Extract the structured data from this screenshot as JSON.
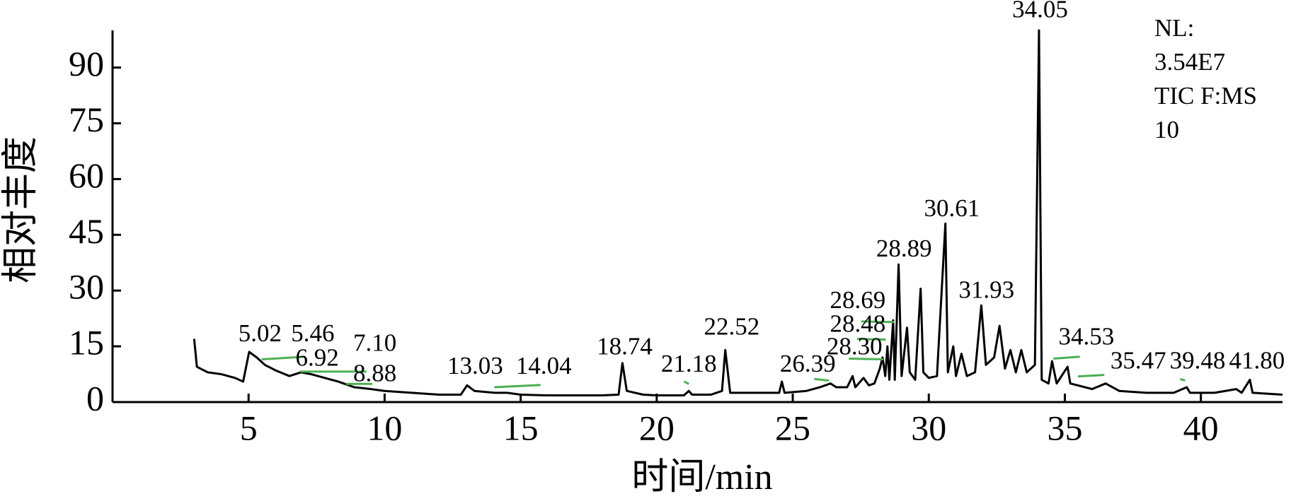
{
  "chart_data": {
    "type": "line",
    "xlabel": "时间/min",
    "ylabel": "相对丰度",
    "note": [
      "NL:",
      "3.54E7",
      "TIC F:MS",
      "10"
    ],
    "xlim": [
      0,
      43
    ],
    "ylim": [
      0,
      100
    ],
    "xticks": [
      5,
      10,
      15,
      20,
      25,
      30,
      35,
      40
    ],
    "yticks": [
      0,
      15,
      30,
      45,
      60,
      75,
      90
    ],
    "color": "#000000",
    "x": [
      3.0,
      3.1,
      3.5,
      4.0,
      4.5,
      4.8,
      5.02,
      5.3,
      5.6,
      6.0,
      6.5,
      6.92,
      7.3,
      7.8,
      8.3,
      8.88,
      9.5,
      10,
      11,
      12,
      12.8,
      13.03,
      13.3,
      14.04,
      14.5,
      15,
      16,
      17,
      18,
      18.6,
      18.74,
      18.9,
      19.5,
      20,
      21,
      21.18,
      21.3,
      22,
      22.4,
      22.52,
      22.7,
      23.5,
      24.5,
      24.6,
      24.7,
      25.5,
      26,
      26.39,
      26.6,
      27,
      27.2,
      27.3,
      27.6,
      27.8,
      28,
      28.2,
      28.3,
      28.4,
      28.48,
      28.55,
      28.69,
      28.75,
      28.89,
      29,
      29.2,
      29.3,
      29.5,
      29.7,
      29.8,
      30,
      30.3,
      30.61,
      30.7,
      30.9,
      31,
      31.2,
      31.4,
      31.7,
      31.93,
      32.1,
      32.4,
      32.6,
      32.8,
      33,
      33.2,
      33.4,
      33.6,
      33.9,
      34.05,
      34.15,
      34.4,
      34.53,
      34.7,
      35.1,
      35.2,
      35.47,
      36,
      36.5,
      37,
      38,
      39,
      39.48,
      39.6,
      40.5,
      41.3,
      41.5,
      41.8,
      41.9,
      43
    ],
    "values": [
      17,
      9.5,
      8,
      7.5,
      6.5,
      5.5,
      13.5,
      12,
      10,
      8.5,
      7,
      8,
      7.5,
      6.5,
      5.5,
      4,
      3.5,
      3,
      2.5,
      2,
      2,
      4.5,
      3,
      2.5,
      2.5,
      2,
      1.8,
      1.8,
      1.8,
      2,
      10.5,
      3,
      2,
      1.8,
      1.8,
      3,
      2,
      2,
      3,
      14,
      2.5,
      2.5,
      2.5,
      5.5,
      2.5,
      3,
      4,
      5,
      4,
      4,
      7,
      4,
      6.5,
      4.5,
      5,
      9,
      12,
      7,
      15,
      6,
      22,
      6,
      37,
      7,
      20,
      8,
      6,
      30.5,
      8,
      6.5,
      7,
      48,
      8,
      15,
      7,
      13,
      7,
      8,
      26,
      10,
      12,
      20.5,
      9,
      14,
      8,
      14,
      8,
      10,
      100,
      6,
      5,
      11,
      5,
      9.5,
      5,
      4.5,
      3.5,
      5,
      3,
      2.5,
      2.5,
      4,
      2.5,
      2.5,
      3.5,
      2.5,
      6,
      2.5,
      2
    ],
    "annotations": [
      {
        "label": "5.02",
        "x": 5.42,
        "y": 17.9
      },
      {
        "label": "5.46",
        "x": 7.36,
        "y": 17.9
      },
      {
        "label": "7.10",
        "x": 9.64,
        "y": 15.3
      },
      {
        "label": "6.92",
        "x": 7.52,
        "y": 11.3
      },
      {
        "label": "8.88",
        "x": 9.64,
        "y": 7.1
      },
      {
        "label": "13.03",
        "x": 13.33,
        "y": 9.1
      },
      {
        "label": "14.04",
        "x": 15.85,
        "y": 9.1
      },
      {
        "label": "18.74",
        "x": 18.82,
        "y": 14.4
      },
      {
        "label": "21.18",
        "x": 21.18,
        "y": 9.7
      },
      {
        "label": "22.52",
        "x": 22.76,
        "y": 19.7
      },
      {
        "label": "26.39",
        "x": 25.55,
        "y": 9.7
      },
      {
        "label": "28.69",
        "x": 27.39,
        "y": 26.8
      },
      {
        "label": "28.48",
        "x": 27.39,
        "y": 20.4
      },
      {
        "label": "28.30",
        "x": 27.27,
        "y": 14.4
      },
      {
        "label": "28.89",
        "x": 29.09,
        "y": 40.7
      },
      {
        "label": "30.61",
        "x": 30.85,
        "y": 51.5
      },
      {
        "label": "31.93",
        "x": 32.12,
        "y": 29.6
      },
      {
        "label": "34.05",
        "x": 34.09,
        "y": 105
      },
      {
        "label": "34.53",
        "x": 35.79,
        "y": 17
      },
      {
        "label": "35.47",
        "x": 37.7,
        "y": 10.6
      },
      {
        "label": "39.48",
        "x": 39.88,
        "y": 10.6
      },
      {
        "label": "41.80",
        "x": 42.06,
        "y": 10.6
      }
    ],
    "segment_color": "#4caf50",
    "segments": [
      {
        "x": [
          5.48,
          7.06
        ],
        "y": [
          11.5,
          12.2
        ]
      },
      {
        "x": [
          6.91,
          9.33
        ],
        "y": [
          8.2,
          8.2
        ]
      },
      {
        "x": [
          8.58,
          9.55
        ],
        "y": [
          4.9,
          4.9
        ]
      },
      {
        "x": [
          14.03,
          15.73
        ],
        "y": [
          4.0,
          4.6
        ]
      },
      {
        "x": [
          21.0,
          21.18
        ],
        "y": [
          5.5,
          4.9
        ]
      },
      {
        "x": [
          25.79,
          26.33
        ],
        "y": [
          6.2,
          5.8
        ]
      },
      {
        "x": [
          27.06,
          28.33
        ],
        "y": [
          11.7,
          11.5
        ]
      },
      {
        "x": [
          27.36,
          28.42
        ],
        "y": [
          17.0,
          16.8
        ]
      },
      {
        "x": [
          27.52,
          28.73
        ],
        "y": [
          21.7,
          21.5
        ]
      },
      {
        "x": [
          34.58,
          35.55
        ],
        "y": [
          11.7,
          12.2
        ]
      },
      {
        "x": [
          35.48,
          36.45
        ],
        "y": [
          6.9,
          7.3
        ]
      },
      {
        "x": [
          39.24,
          39.42
        ],
        "y": [
          6.2,
          5.8
        ]
      }
    ]
  }
}
